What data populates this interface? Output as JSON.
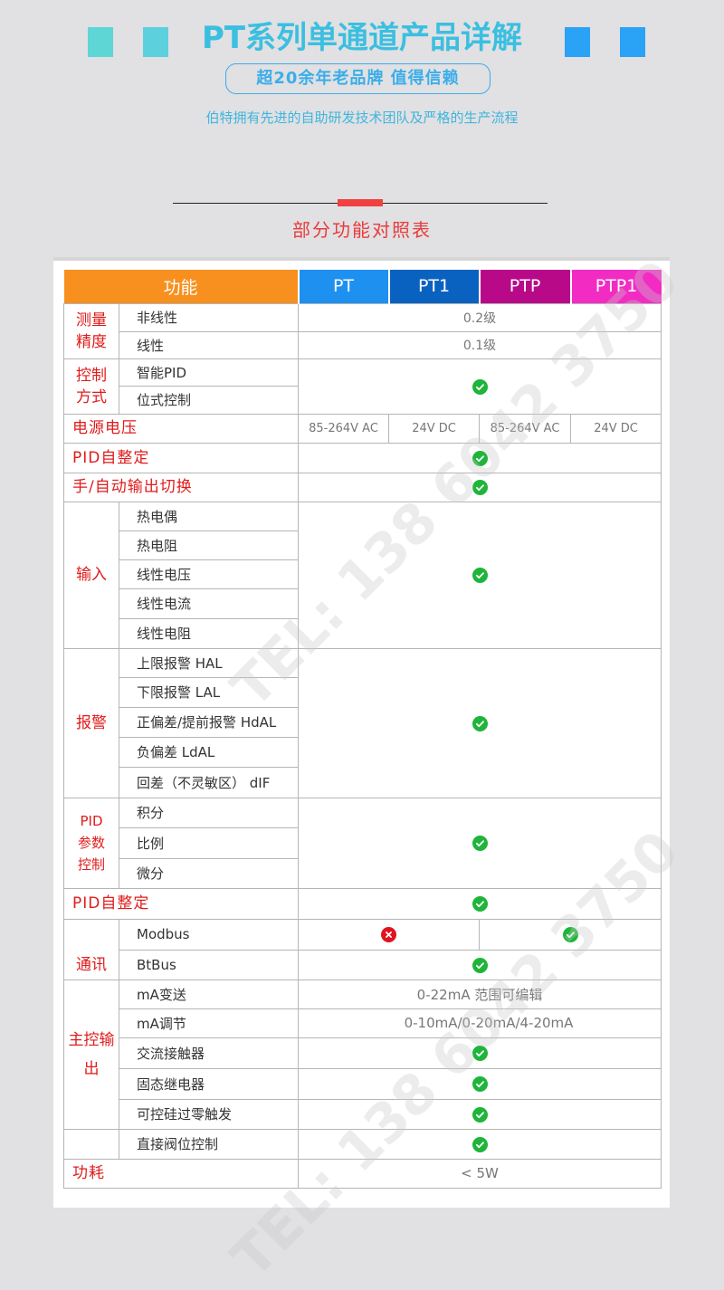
{
  "header": {
    "title": "PT系列单通道产品详解",
    "slogan": "超20余年老品牌 值得信赖",
    "subtitle": "伯特拥有先进的自助研发技术团队及严格的生产流程",
    "section_title": "部分功能对照表"
  },
  "colors": {
    "bg": "#e1e0e3",
    "feature_header": "#f7901e",
    "pt": "#1e90f0",
    "pt1": "#0a62c0",
    "ptp": "#b80a88",
    "ptp1": "#f22cc3",
    "check": "#1eb53a",
    "cross": "#e0141e",
    "label_red": "#e01b1b"
  },
  "watermark": "TEL: 138 6042 3750",
  "table": {
    "headers": [
      "功能",
      "PT",
      "PT1",
      "PTP",
      "PTP1"
    ],
    "measure": {
      "group": "测量精度",
      "rows": [
        {
          "label": "非线性",
          "value": "0.2级"
        },
        {
          "label": "线性",
          "value": "0.1级"
        }
      ]
    },
    "control": {
      "group": "控制方式",
      "rows": [
        "智能PID",
        "位式控制"
      ],
      "value": "check"
    },
    "power": {
      "label": "电源电压",
      "values": [
        "85-264V AC",
        "24V DC",
        "85-264V AC",
        "24V DC"
      ]
    },
    "pid_tune": {
      "label": "PID自整定",
      "value": "check"
    },
    "manual": {
      "label": "手/自动输出切换",
      "value": "check"
    },
    "input": {
      "group": "输入",
      "rows": [
        "热电偶",
        "热电阻",
        "线性电压",
        "线性电流",
        "线性电阻"
      ],
      "value": "check"
    },
    "alarm": {
      "group": "报警",
      "rows": [
        "上限报警 HAL",
        "下限报警 LAL",
        "正偏差/提前报警 HdAL",
        "负偏差 LdAL",
        "回差（不灵敏区） dIF"
      ],
      "value": "check"
    },
    "pid_param": {
      "group": "PID参数控制",
      "group_lines": [
        "PID",
        "参数",
        "控制"
      ],
      "rows": [
        "积分",
        "比例",
        "微分"
      ],
      "value": "check"
    },
    "pid_tune2": {
      "label": "PID自整定",
      "value": "check"
    },
    "comm": {
      "group": "通讯",
      "rows": [
        {
          "label": "Modbus",
          "pt_pt1": "cross",
          "ptp_ptp1": "check"
        },
        {
          "label": "BtBus",
          "value": "check"
        }
      ]
    },
    "output": {
      "group": "主控输出",
      "rows": [
        {
          "label": "mA变送",
          "value": "0-22mA  范围可编辑"
        },
        {
          "label": "mA调节",
          "value": "0-10mA/0-20mA/4-20mA"
        },
        {
          "label": "交流接触器",
          "value": "check"
        },
        {
          "label": "固态继电器",
          "value": "check"
        },
        {
          "label": "可控硅过零触发",
          "value": "check"
        }
      ]
    },
    "valve": {
      "label": "直接阀位控制",
      "value": "check"
    },
    "consumption": {
      "label": "功耗",
      "value": "< 5W"
    }
  }
}
